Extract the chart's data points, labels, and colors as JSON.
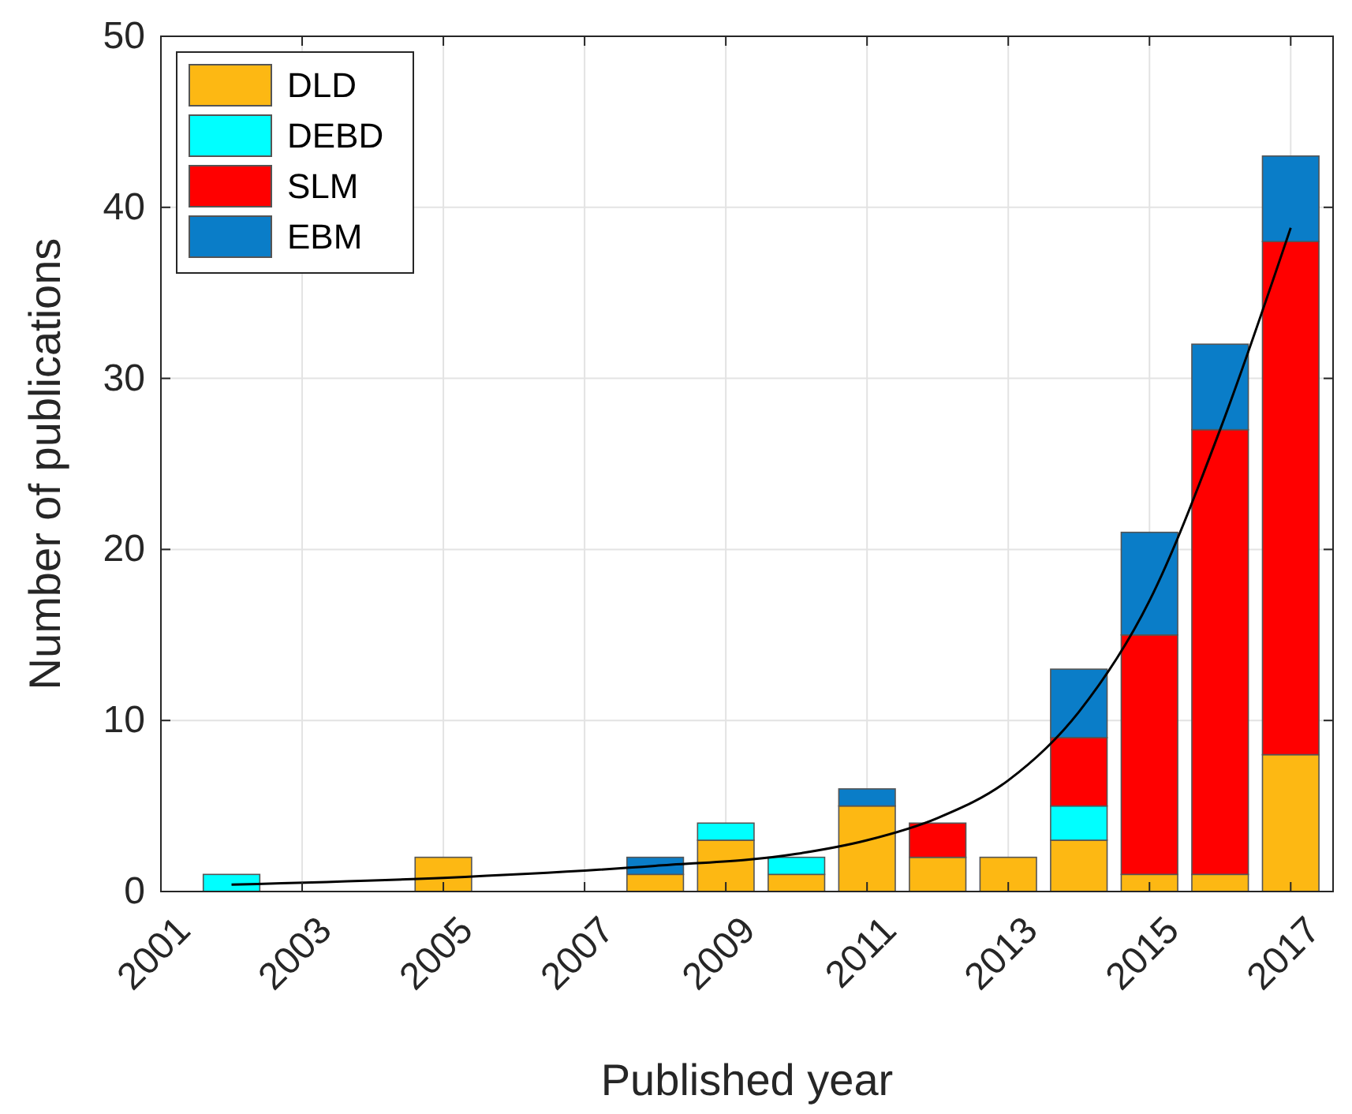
{
  "chart_data": {
    "type": "bar",
    "stacked": true,
    "xlabel": "Published year",
    "ylabel": "Number of publications",
    "x": [
      2002,
      2005,
      2008,
      2009,
      2010,
      2011,
      2012,
      2013,
      2014,
      2015,
      2016,
      2017
    ],
    "series": [
      {
        "name": "DLD",
        "color": "#fdb813",
        "values": [
          0,
          2,
          1,
          3,
          1,
          5,
          2,
          2,
          3,
          1,
          1,
          8
        ]
      },
      {
        "name": "DEBD",
        "color": "#00ffff",
        "values": [
          1,
          0,
          0,
          1,
          1,
          0,
          0,
          0,
          2,
          0,
          0,
          0
        ]
      },
      {
        "name": "SLM",
        "color": "#ff0000",
        "values": [
          0,
          0,
          0,
          0,
          0,
          0,
          2,
          0,
          4,
          14,
          26,
          30
        ]
      },
      {
        "name": "EBM",
        "color": "#0a7dc8",
        "values": [
          0,
          0,
          1,
          0,
          0,
          1,
          0,
          0,
          4,
          6,
          5,
          5
        ]
      },
      {
        "type": "line",
        "color": "#000000",
        "x": [
          2002,
          2005,
          2008,
          2010,
          2011,
          2012,
          2013,
          2014,
          2015,
          2016,
          2017
        ],
        "values": [
          0.4,
          0.8,
          1.5,
          2.2,
          3,
          4.3,
          6.5,
          10.5,
          17,
          27,
          38.8
        ]
      }
    ],
    "xlim": [
      2001,
      2017.6
    ],
    "xticks": [
      2001,
      2003,
      2005,
      2007,
      2009,
      2011,
      2013,
      2015,
      2017
    ],
    "ylim": [
      0,
      50
    ],
    "yticks": [
      0,
      10,
      20,
      30,
      40,
      50
    ],
    "grid": true,
    "legend": "top left",
    "line_style": "solid",
    "marker": "none"
  }
}
